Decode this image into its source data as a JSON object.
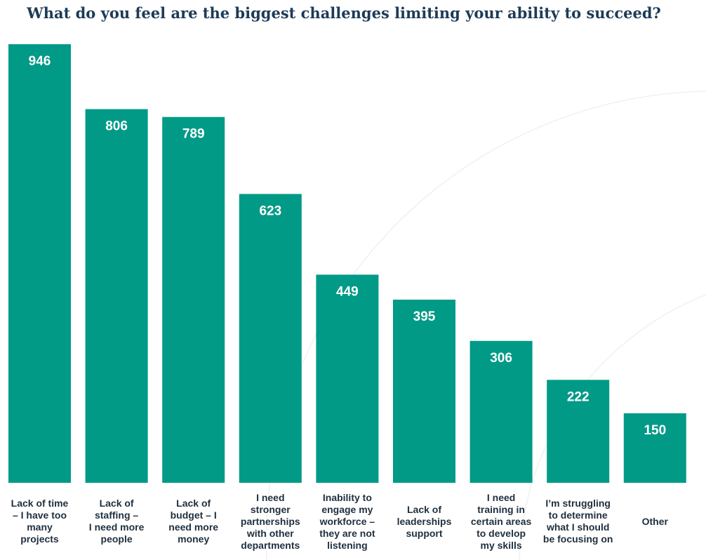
{
  "chart_data": {
    "type": "bar",
    "title": "What do you feel are the biggest challenges limiting your ability to succeed?",
    "categories": [
      "Lack of time – I have too many projects",
      "Lack of staffing – I need more people",
      "Lack of budget – I need more money",
      "I need stronger partnerships with other departments",
      "Inability to engage my workforce – they are not listening",
      "Lack of leaderships support",
      "I need training in certain areas to develop my skills",
      "I’m struggling to determine what I should be focusing on",
      "Other"
    ],
    "category_lines": [
      [
        "Lack of time",
        "– I have too",
        "many",
        "projects"
      ],
      [
        "Lack of",
        "staffing –",
        "I need more",
        "people"
      ],
      [
        "Lack of",
        "budget – I",
        "need more",
        "money"
      ],
      [
        "I need",
        "stronger",
        "partnerships",
        "with other",
        "departments"
      ],
      [
        "Inability to",
        "engage my",
        "workforce –",
        "they are not",
        "listening"
      ],
      [
        "Lack of",
        "leaderships",
        "support"
      ],
      [
        "I need",
        "training in",
        "certain areas",
        "to develop",
        "my skills"
      ],
      [
        "I’m struggling",
        "to determine",
        "what I should",
        "be focusing on"
      ],
      [
        "Other"
      ]
    ],
    "values": [
      946,
      806,
      789,
      623,
      449,
      395,
      306,
      222,
      150
    ],
    "xlabel": "",
    "ylabel": "",
    "ylim": [
      0,
      946
    ],
    "grid": false,
    "legend": "none",
    "bar_color": "#009a87"
  }
}
